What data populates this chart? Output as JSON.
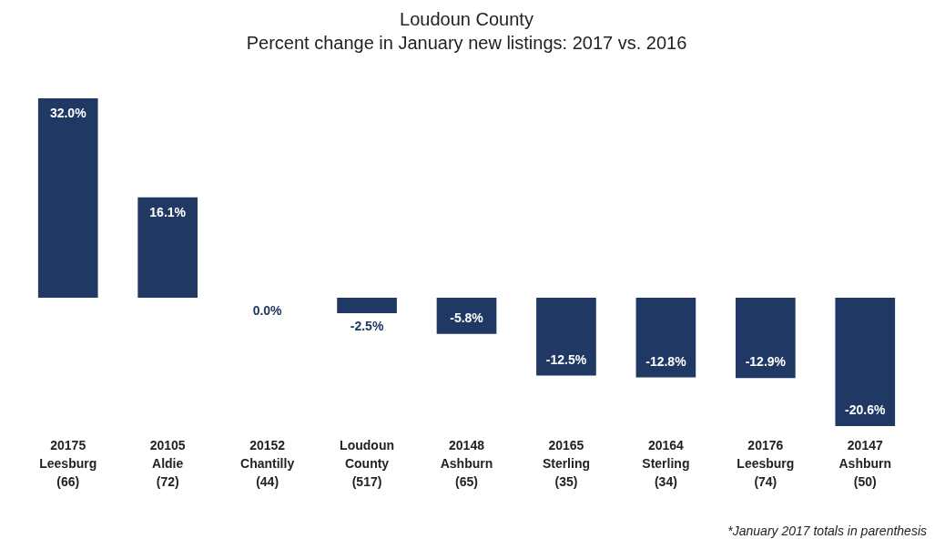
{
  "chart_data": {
    "type": "bar",
    "title": "Loudoun County",
    "subtitle": "Percent change in January new listings: 2017 vs. 2016",
    "categories": [
      "20175\nLeesburg\n(66)",
      "20105\nAldie\n(72)",
      "20152\nChantilly\n(44)",
      "Loudoun\nCounty\n(517)",
      "20148\nAshburn\n(65)",
      "20165\nSterling\n(35)",
      "20164\nSterling\n(34)",
      "20176\nLeesburg\n(74)",
      "20147\nAshburn\n(50)"
    ],
    "values": [
      32.0,
      16.1,
      0.0,
      -2.5,
      -5.8,
      -12.5,
      -12.8,
      -12.9,
      -20.6
    ],
    "value_labels": [
      "32.0%",
      "16.1%",
      "0.0%",
      "-2.5%",
      "-5.8%",
      "-12.5%",
      "-12.8%",
      "-12.9%",
      "-20.6%"
    ],
    "color": "#1f3864",
    "annotations": [
      "*January 2017 totals in parenthesis"
    ]
  }
}
